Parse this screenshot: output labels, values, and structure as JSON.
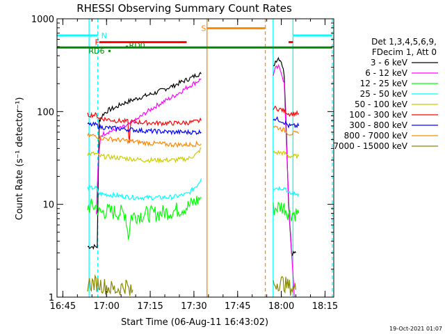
{
  "chart_data": {
    "type": "line",
    "title": "RHESSI Observing Summary Count Rates",
    "xlabel": "Start Time (06-Aug-11 16:43:02)",
    "ylabel": "Count Rate (s⁻¹ detector⁻¹)",
    "x_unit": "minutes since 16:43:02",
    "xlim": [
      0,
      95
    ],
    "ylim": [
      1,
      1000
    ],
    "yscale": "log",
    "x_ticks": [
      {
        "label": "16:45",
        "x": 2
      },
      {
        "label": "17:00",
        "x": 17
      },
      {
        "label": "17:15",
        "x": 32
      },
      {
        "label": "17:30",
        "x": 47
      },
      {
        "label": "17:45",
        "x": 62
      },
      {
        "label": "18:00",
        "x": 77
      },
      {
        "label": "18:15",
        "x": 92
      }
    ],
    "y_ticks": [
      {
        "label": "1",
        "y": 1
      },
      {
        "label": "10",
        "y": 10
      },
      {
        "label": "100",
        "y": 100
      },
      {
        "label": "1000",
        "y": 1000
      }
    ],
    "legend": {
      "placement": "right",
      "header": [
        "Det 1,3,4,5,6,9,",
        "FDecim 1, Att 0"
      ]
    },
    "series": [
      {
        "name": "3 - 6 keV",
        "color": "#000000",
        "segments": [
          [
            [
              10.5,
              3.5
            ],
            [
              13.8,
              3.5
            ],
            [
              14.5,
              80
            ],
            [
              16,
              95
            ],
            [
              18,
              105
            ],
            [
              20,
              110
            ],
            [
              22,
              120
            ],
            [
              25,
              130
            ],
            [
              28,
              140
            ],
            [
              31,
              150
            ],
            [
              34,
              160
            ],
            [
              37,
              175
            ],
            [
              40,
              190
            ],
            [
              43,
              210
            ],
            [
              46,
              230
            ],
            [
              48,
              250
            ],
            [
              49.5,
              255
            ]
          ],
          [
            [
              74.2,
              300
            ],
            [
              75,
              350
            ],
            [
              76,
              380
            ],
            [
              77,
              350
            ],
            [
              78,
              250
            ],
            [
              78.5,
              100
            ],
            [
              79.5,
              10
            ],
            [
              80.5,
              3
            ],
            [
              82,
              3
            ]
          ]
        ]
      },
      {
        "name": "6 - 12 keV",
        "color": "#ff00ff",
        "segments": [
          [
            [
              13.5,
              8
            ],
            [
              14.2,
              30
            ],
            [
              15,
              55
            ],
            [
              17,
              60
            ],
            [
              19,
              62
            ],
            [
              21,
              65
            ],
            [
              24,
              70
            ],
            [
              27,
              80
            ],
            [
              30,
              95
            ],
            [
              33,
              110
            ],
            [
              36,
              125
            ],
            [
              39,
              140
            ],
            [
              42,
              160
            ],
            [
              45,
              185
            ],
            [
              48,
              210
            ],
            [
              49.5,
              225
            ]
          ],
          [
            [
              74.2,
              250
            ],
            [
              75,
              290
            ],
            [
              76,
              300
            ],
            [
              77,
              270
            ],
            [
              78,
              200
            ],
            [
              78.6,
              60
            ],
            [
              79.6,
              10
            ],
            [
              80.5,
              3
            ],
            [
              81.5,
              1
            ]
          ]
        ]
      },
      {
        "name": "12 - 25 keV",
        "color": "#00ff00",
        "segments": [
          [
            [
              10.5,
              9.5
            ],
            [
              13.5,
              9.5
            ],
            [
              14.5,
              8
            ],
            [
              17,
              8.5
            ],
            [
              20,
              8.2
            ],
            [
              23.5,
              8
            ],
            [
              24.5,
              4.5
            ],
            [
              25.5,
              7.5
            ],
            [
              30,
              7.8
            ],
            [
              35,
              8
            ],
            [
              40,
              8.5
            ],
            [
              45,
              9.5
            ],
            [
              48,
              11
            ],
            [
              49.5,
              12
            ]
          ],
          [
            [
              74.2,
              9
            ],
            [
              77,
              9.5
            ],
            [
              78.5,
              9
            ],
            [
              79.5,
              8
            ],
            [
              83,
              8
            ]
          ]
        ]
      },
      {
        "name": "25 - 50 keV",
        "color": "#00ffff",
        "segments": [
          [
            [
              10.5,
              15
            ],
            [
              13.5,
              15
            ],
            [
              14.5,
              13
            ],
            [
              20,
              12.5
            ],
            [
              25,
              12
            ],
            [
              30,
              11.8
            ],
            [
              35,
              11.8
            ],
            [
              40,
              12
            ],
            [
              45,
              13
            ],
            [
              48,
              16
            ],
            [
              49.5,
              19
            ]
          ],
          [
            [
              74.2,
              15
            ],
            [
              77,
              15
            ],
            [
              78.5,
              15
            ],
            [
              79.5,
              13
            ],
            [
              83,
              13
            ]
          ]
        ]
      },
      {
        "name": "50 - 100 keV",
        "color": "#cccc00",
        "segments": [
          [
            [
              10.5,
              35
            ],
            [
              13.5,
              35
            ],
            [
              14.5,
              33
            ],
            [
              20,
              32
            ],
            [
              25,
              31
            ],
            [
              30,
              30
            ],
            [
              35,
              30
            ],
            [
              40,
              30
            ],
            [
              45,
              31
            ],
            [
              48,
              35
            ],
            [
              49.5,
              40
            ]
          ],
          [
            [
              74.2,
              36
            ],
            [
              77,
              36
            ],
            [
              78.5,
              35
            ],
            [
              79.5,
              33
            ],
            [
              83,
              33
            ]
          ]
        ]
      },
      {
        "name": "100 - 300 keV",
        "color": "#ff0000",
        "segments": [
          [
            [
              10.5,
              92
            ],
            [
              13.5,
              92
            ],
            [
              14.5,
              85
            ],
            [
              20,
              80
            ],
            [
              24.3,
              78
            ],
            [
              24.8,
              45
            ],
            [
              25.3,
              78
            ],
            [
              30,
              76
            ],
            [
              35,
              75
            ],
            [
              40,
              75
            ],
            [
              45,
              76
            ],
            [
              48,
              78
            ],
            [
              49.5,
              80
            ]
          ],
          [
            [
              74.2,
              110
            ],
            [
              77,
              105
            ],
            [
              78.5,
              100
            ],
            [
              79.5,
              95
            ],
            [
              83,
              95
            ]
          ]
        ]
      },
      {
        "name": "300 - 800 keV",
        "color": "#0000ff",
        "segments": [
          [
            [
              10.5,
              72
            ],
            [
              13.5,
              72
            ],
            [
              14.5,
              68
            ],
            [
              20,
              66
            ],
            [
              25,
              64
            ],
            [
              30,
              62
            ],
            [
              35,
              61
            ],
            [
              40,
              60
            ],
            [
              45,
              60
            ],
            [
              49.5,
              60
            ]
          ],
          [
            [
              74.2,
              85
            ],
            [
              77,
              80
            ],
            [
              78.5,
              75
            ],
            [
              79.5,
              70
            ],
            [
              83,
              70
            ]
          ]
        ]
      },
      {
        "name": "800 - 7000 keV",
        "color": "#ff8800",
        "segments": [
          [
            [
              10.5,
              55
            ],
            [
              13.5,
              55
            ],
            [
              14.5,
              52
            ],
            [
              20,
              50
            ],
            [
              25,
              48
            ],
            [
              30,
              46
            ],
            [
              35,
              45
            ],
            [
              40,
              44
            ],
            [
              45,
              44
            ],
            [
              49.5,
              45
            ]
          ],
          [
            [
              74.2,
              70
            ],
            [
              77,
              65
            ],
            [
              78.5,
              62
            ],
            [
              79.5,
              58
            ],
            [
              83,
              58
            ]
          ]
        ]
      },
      {
        "name": "7000 - 15000 keV",
        "color": "#888800",
        "segments": [
          [
            [
              10.5,
              1.4
            ],
            [
              14,
              1.4
            ],
            [
              17,
              1.3
            ],
            [
              20,
              1.2
            ],
            [
              24,
              1.35
            ],
            [
              25,
              1.1
            ],
            [
              26,
              1.2
            ]
          ],
          [
            [
              74.2,
              1.4
            ],
            [
              77,
              1.45
            ],
            [
              79.5,
              1.3
            ],
            [
              82,
              1.2
            ]
          ]
        ]
      }
    ],
    "flag_bars": [
      {
        "label": "N",
        "color": "#00ffff",
        "segments": [
          [
            0,
            14
          ],
          [
            81,
            94.5
          ]
        ],
        "y": 660,
        "label_x": 15.2
      },
      {
        "label": "F",
        "color": "#ff0000",
        "segments": [
          [
            14.5,
            44.5
          ],
          [
            79.5,
            81
          ]
        ],
        "y": 560,
        "label_x": 13
      },
      {
        "label": "S",
        "color": "#ff8800",
        "segments": [
          [
            51.5,
            71.5
          ]
        ],
        "y": 790,
        "label_x": 49.5
      },
      {
        "label": "",
        "color": "#008800",
        "segments": [
          [
            0,
            94.5
          ]
        ],
        "y": 490,
        "label_x": 0
      }
    ],
    "annotations": [
      {
        "label": "RD6",
        "x": 18,
        "y": 450,
        "color": "#008800"
      },
      {
        "label": "RD0",
        "x": 24,
        "y": 500,
        "color": "#008800"
      }
    ],
    "night_lines": [
      {
        "x": 11,
        "color": "#00ffff",
        "style": "solid"
      },
      {
        "x": 14,
        "color": "#00ffff",
        "style": "dashed"
      },
      {
        "x": 51.5,
        "color": "#ff8800",
        "style": "solid"
      },
      {
        "x": 71.5,
        "color": "#ff8800",
        "style": "dashed"
      },
      {
        "x": 74.2,
        "color": "#00ffff",
        "style": "solid"
      },
      {
        "x": 81,
        "color": "#00ffff",
        "style": "solid"
      },
      {
        "x": 94.5,
        "color": "#00ffff",
        "style": "dashed"
      }
    ]
  },
  "timestamp": "19-Oct-2021 01:07"
}
